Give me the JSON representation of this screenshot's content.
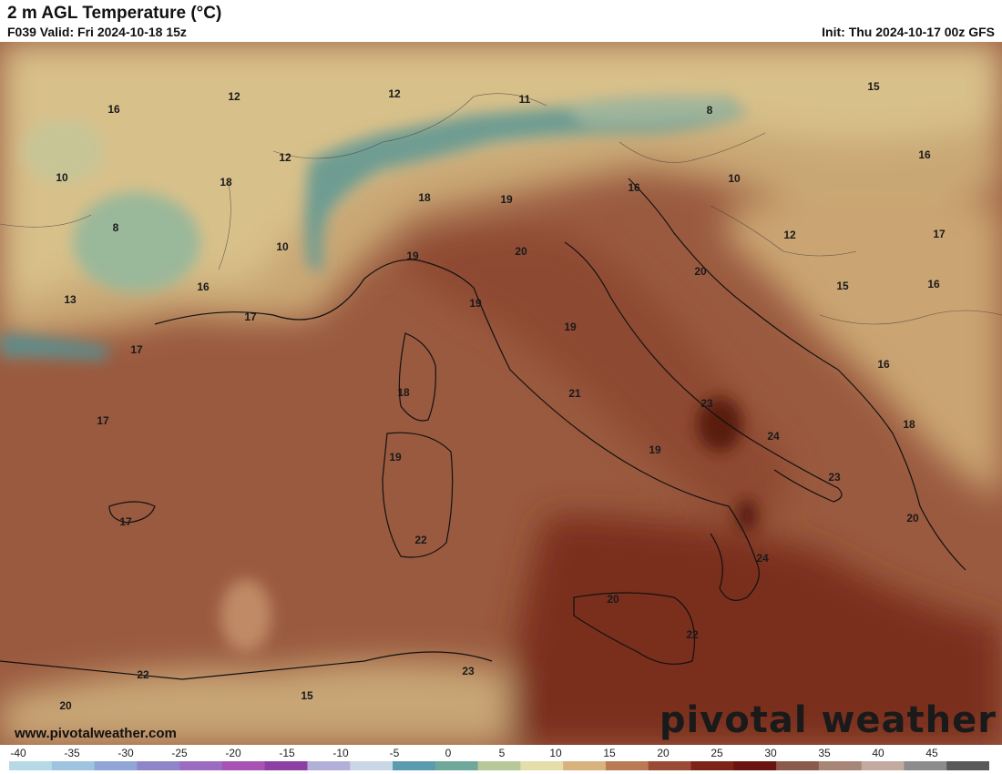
{
  "header": {
    "title": "2 m AGL Temperature (°C)",
    "valid": "F039 Valid: Fri 2024-10-18 15z",
    "init": "Init: Thu 2024-10-17 00z GFS"
  },
  "footer": {
    "website": "www.pivotalweather.com",
    "brand": "pivotal weather"
  },
  "scale": {
    "ticks": [
      "-40",
      "-35",
      "-30",
      "-25",
      "-20",
      "-15",
      "-10",
      "-5",
      "0",
      "5",
      "10",
      "15",
      "20",
      "25",
      "30",
      "35",
      "40",
      "45"
    ],
    "colors": [
      "#b7d9e6",
      "#9fc4e0",
      "#8fa6d6",
      "#8f86c9",
      "#9c6cc0",
      "#a653b3",
      "#8d3fa4",
      "#b2b0d8",
      "#c9d7e6",
      "#5a9bb0",
      "#6fa79a",
      "#b7c99a",
      "#e6deaa",
      "#d8b37d",
      "#b97a55",
      "#9a4a35",
      "#7d2418",
      "#6a1410",
      "#8a5a4a",
      "#a78577",
      "#c2aaa0",
      "#8c8c8c",
      "#595959"
    ]
  },
  "map_labels": [
    {
      "text": "12"
    },
    {
      "text": "16"
    },
    {
      "text": "12"
    },
    {
      "text": "11"
    },
    {
      "text": "15"
    },
    {
      "text": "8"
    },
    {
      "text": "12"
    },
    {
      "text": "18"
    },
    {
      "text": "10"
    },
    {
      "text": "16"
    },
    {
      "text": "10"
    },
    {
      "text": "16"
    },
    {
      "text": "8"
    },
    {
      "text": "18"
    },
    {
      "text": "19"
    },
    {
      "text": "12"
    },
    {
      "text": "17"
    },
    {
      "text": "10"
    },
    {
      "text": "19"
    },
    {
      "text": "20"
    },
    {
      "text": "20"
    },
    {
      "text": "15"
    },
    {
      "text": "16"
    },
    {
      "text": "13"
    },
    {
      "text": "16"
    },
    {
      "text": "17"
    },
    {
      "text": "19"
    },
    {
      "text": "19"
    },
    {
      "text": "17"
    },
    {
      "text": "16"
    },
    {
      "text": "18"
    },
    {
      "text": "21"
    },
    {
      "text": "23"
    },
    {
      "text": "18"
    },
    {
      "text": "17"
    },
    {
      "text": "24"
    },
    {
      "text": "19"
    },
    {
      "text": "19"
    },
    {
      "text": "23"
    },
    {
      "text": "20"
    },
    {
      "text": "17"
    },
    {
      "text": "22"
    },
    {
      "text": "24"
    },
    {
      "text": "20"
    },
    {
      "text": "22"
    },
    {
      "text": "22"
    },
    {
      "text": "23"
    },
    {
      "text": "15"
    },
    {
      "text": "20"
    }
  ]
}
